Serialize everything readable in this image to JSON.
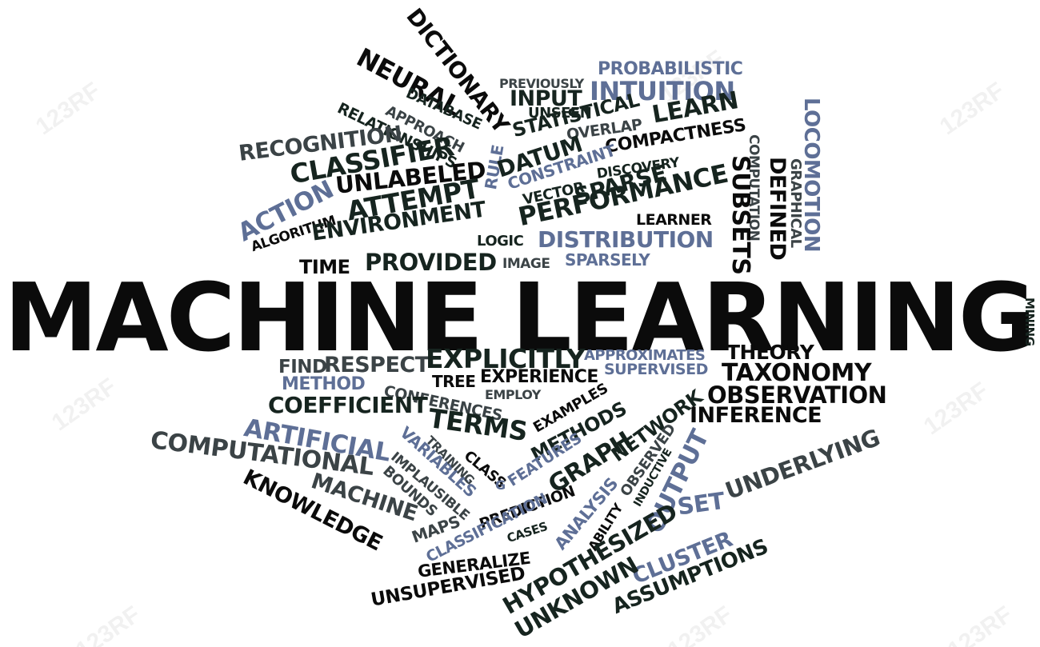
{
  "watermark": "123RF",
  "colors": {
    "black": "#0b0b0b",
    "dark": "#16241f",
    "slate": "#3b4346",
    "blue": "#5e6f96"
  },
  "words": [
    {
      "text": "MACHINE LEARNING",
      "color": "black"
    },
    {
      "text": "DICTIONARY",
      "color": "black"
    },
    {
      "text": "NEURAL",
      "color": "black"
    },
    {
      "text": "DATABASE",
      "color": "dark"
    },
    {
      "text": "APPROACH",
      "color": "slate"
    },
    {
      "text": "RELATIONSHIPS",
      "color": "dark"
    },
    {
      "text": "RULE",
      "color": "blue"
    },
    {
      "text": "PREVIOUSLY",
      "color": "slate"
    },
    {
      "text": "PROBABILISTIC",
      "color": "blue"
    },
    {
      "text": "INPUT",
      "color": "dark"
    },
    {
      "text": "INTUITION",
      "color": "blue"
    },
    {
      "text": "UNSEEN",
      "color": "dark"
    },
    {
      "text": "STATISTICAL",
      "color": "dark"
    },
    {
      "text": "OVERLAP",
      "color": "slate"
    },
    {
      "text": "LEARN",
      "color": "dark"
    },
    {
      "text": "COMPACTNESS",
      "color": "black"
    },
    {
      "text": "LOCOMOTION",
      "color": "blue"
    },
    {
      "text": "COMPUTATION",
      "color": "slate"
    },
    {
      "text": "GRAPHICAL",
      "color": "slate"
    },
    {
      "text": "DEFINED",
      "color": "black"
    },
    {
      "text": "SUBSETS",
      "color": "black"
    },
    {
      "text": "RECOGNITION",
      "color": "slate"
    },
    {
      "text": "CLASSIFIER",
      "color": "dark"
    },
    {
      "text": "DATUM",
      "color": "dark"
    },
    {
      "text": "CONSTRAINT",
      "color": "blue"
    },
    {
      "text": "DISCOVERY",
      "color": "dark"
    },
    {
      "text": "UNLABELED",
      "color": "black"
    },
    {
      "text": "VECTOR",
      "color": "dark"
    },
    {
      "text": "SPARSE",
      "color": "dark"
    },
    {
      "text": "PERFORMANCE",
      "color": "dark"
    },
    {
      "text": "ACTION",
      "color": "blue"
    },
    {
      "text": "ATTEMPT",
      "color": "dark"
    },
    {
      "text": "ALGORITHM",
      "color": "black"
    },
    {
      "text": "ENVIRONMENT",
      "color": "dark"
    },
    {
      "text": "LEARNER",
      "color": "black"
    },
    {
      "text": "LOGIC",
      "color": "dark"
    },
    {
      "text": "DISTRIBUTION",
      "color": "blue"
    },
    {
      "text": "TIME",
      "color": "black"
    },
    {
      "text": "PROVIDED",
      "color": "dark"
    },
    {
      "text": "IMAGE",
      "color": "slate"
    },
    {
      "text": "SPARSELY",
      "color": "blue"
    },
    {
      "text": "MINING",
      "color": "dark"
    },
    {
      "text": "FIND",
      "color": "slate"
    },
    {
      "text": "RESPECT",
      "color": "slate"
    },
    {
      "text": "EXPLICITLY",
      "color": "dark"
    },
    {
      "text": "APPROXIMATES",
      "color": "blue"
    },
    {
      "text": "THEORY",
      "color": "black"
    },
    {
      "text": "METHOD",
      "color": "blue"
    },
    {
      "text": "TREE",
      "color": "black"
    },
    {
      "text": "EXPERIENCE",
      "color": "black"
    },
    {
      "text": "SUPERVISED",
      "color": "blue"
    },
    {
      "text": "TAXONOMY",
      "color": "black"
    },
    {
      "text": "CONFERENCES",
      "color": "slate"
    },
    {
      "text": "EMPLOY",
      "color": "slate"
    },
    {
      "text": "OBSERVATION",
      "color": "black"
    },
    {
      "text": "COEFFICIENT",
      "color": "dark"
    },
    {
      "text": "TERMS",
      "color": "dark"
    },
    {
      "text": "EXAMPLES",
      "color": "black"
    },
    {
      "text": "NETWORK",
      "color": "dark"
    },
    {
      "text": "INFERENCE",
      "color": "black"
    },
    {
      "text": "ARTIFICIAL",
      "color": "blue"
    },
    {
      "text": "METHODS",
      "color": "dark"
    },
    {
      "text": "COMPUTATIONAL",
      "color": "slate"
    },
    {
      "text": "VARIABLES",
      "color": "blue"
    },
    {
      "text": "TRAINING",
      "color": "slate"
    },
    {
      "text": "CLASS",
      "color": "black"
    },
    {
      "text": "FEATURES",
      "color": "blue"
    },
    {
      "text": "GRAPH",
      "color": "dark"
    },
    {
      "text": "OBSERVED",
      "color": "slate"
    },
    {
      "text": "INDUCTIVE",
      "color": "dark"
    },
    {
      "text": "OUTPUT",
      "color": "blue"
    },
    {
      "text": "UNDERLYING",
      "color": "slate"
    },
    {
      "text": "IMPLAUSIBLE",
      "color": "slate"
    },
    {
      "text": "BOUNDS",
      "color": "slate"
    },
    {
      "text": "MACHINE",
      "color": "slate"
    },
    {
      "text": "KNOWLEDGE",
      "color": "black"
    },
    {
      "text": "G",
      "color": "blue"
    },
    {
      "text": "PREDICTION",
      "color": "black"
    },
    {
      "text": "ANALYSIS",
      "color": "blue"
    },
    {
      "text": "ABILITY",
      "color": "black"
    },
    {
      "text": "SET",
      "color": "blue"
    },
    {
      "text": "MAPS",
      "color": "slate"
    },
    {
      "text": "CLASSIFICATION",
      "color": "blue"
    },
    {
      "text": "CASES",
      "color": "dark"
    },
    {
      "text": "HYPOTHESIZED",
      "color": "dark"
    },
    {
      "text": "CLUSTER",
      "color": "blue"
    },
    {
      "text": "ASSUMPTIONS",
      "color": "dark"
    },
    {
      "text": "GENERALIZE",
      "color": "black"
    },
    {
      "text": "UNSUPERVISED",
      "color": "black"
    },
    {
      "text": "UNKNOWN",
      "color": "dark"
    }
  ]
}
